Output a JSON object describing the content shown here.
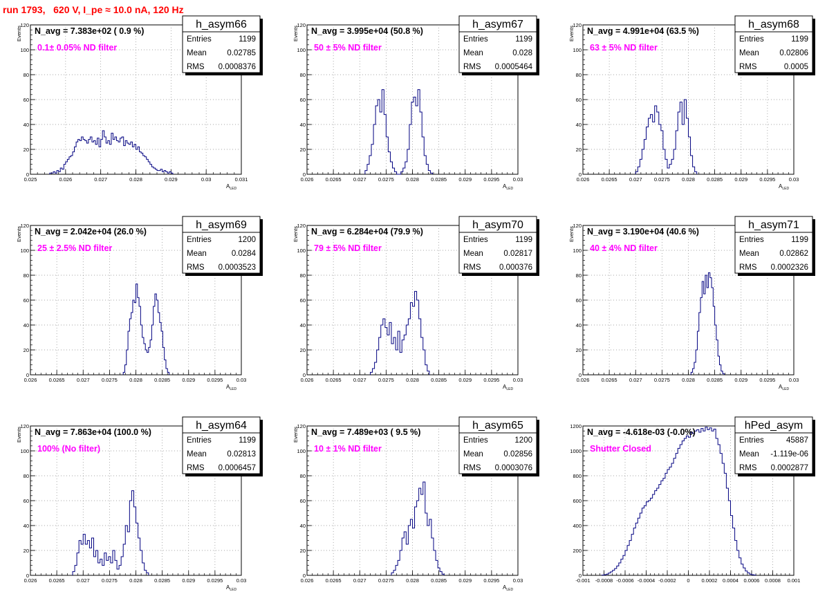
{
  "page_title": "run 1793,   620 V, I_pe ≈ 10.0 nA, 120 Hz",
  "chart_data": [
    {
      "type": "histogram",
      "name": "h_asym66",
      "navg": "N_avg = 7.383e+02 ( 0.9 %)",
      "filter": "0.1± 0.05% ND filter",
      "stats": {
        "entries": "1199",
        "mean": "0.02785",
        "rms": "0.0008376"
      },
      "xlabel": "A",
      "xlabel_sub": "LED",
      "ylabel": "Events",
      "xlim": [
        0.025,
        0.031
      ],
      "ylim": [
        0,
        120
      ],
      "xticks": [
        0.025,
        0.026,
        0.027,
        0.028,
        0.029,
        0.03,
        0.031
      ],
      "xtick_labels": [
        "0.025",
        "0.026",
        "0.027",
        "0.028",
        "0.029",
        "0.03",
        "0.031"
      ],
      "yticks": [
        0,
        20,
        40,
        60,
        80,
        100,
        120
      ],
      "ytick_labels": [
        "0",
        "20",
        "40",
        "60",
        "80",
        "100",
        "120"
      ],
      "bin_start": 0.02555,
      "bin_width": 5e-05,
      "counts": [
        1,
        1,
        2,
        1,
        3,
        2,
        5,
        4,
        8,
        10,
        12,
        14,
        15,
        18,
        22,
        26,
        28,
        27,
        30,
        28,
        27,
        25,
        28,
        30,
        26,
        27,
        24,
        29,
        22,
        28,
        35,
        30,
        25,
        27,
        24,
        33,
        28,
        30,
        27,
        26,
        29,
        30,
        23,
        27,
        25,
        24,
        26,
        22,
        24,
        20,
        22,
        18,
        17,
        15,
        14,
        12,
        10,
        8,
        6,
        5,
        4,
        3,
        3,
        4,
        2,
        3,
        2,
        1,
        2,
        1
      ]
    },
    {
      "type": "histogram",
      "name": "h_asym67",
      "navg": "N_avg = 3.995e+04 (50.8 %)",
      "filter": "50 ± 5% ND filter",
      "stats": {
        "entries": "1199",
        "mean": "0.028",
        "rms": "0.0005464"
      },
      "xlabel": "A",
      "xlabel_sub": "LED",
      "ylabel": "Events",
      "xlim": [
        0.026,
        0.03
      ],
      "ylim": [
        0,
        120
      ],
      "xticks": [
        0.026,
        0.0265,
        0.027,
        0.0275,
        0.028,
        0.0285,
        0.029,
        0.0295,
        0.03
      ],
      "xtick_labels": [
        "0.026",
        "0.0265",
        "0.027",
        "0.0275",
        "0.028",
        "0.0285",
        "0.029",
        "0.0295",
        "0.03"
      ],
      "yticks": [
        0,
        20,
        40,
        60,
        80,
        100,
        120
      ],
      "ytick_labels": [
        "0",
        "20",
        "40",
        "60",
        "80",
        "100",
        "120"
      ],
      "bin_start": 0.0271,
      "bin_width": 4e-05,
      "counts": [
        3,
        8,
        15,
        24,
        40,
        55,
        60,
        50,
        68,
        48,
        30,
        18,
        10,
        5,
        2,
        0,
        0,
        2,
        5,
        10,
        20,
        40,
        58,
        62,
        55,
        68,
        50,
        30,
        15,
        8,
        3,
        1
      ]
    },
    {
      "type": "histogram",
      "name": "h_asym68",
      "navg": "N_avg = 4.991e+04 (63.5 %)",
      "filter": "63 ± 5% ND filter",
      "stats": {
        "entries": "1199",
        "mean": "0.02806",
        "rms": "0.0005"
      },
      "xlabel": "A",
      "xlabel_sub": "LED",
      "ylabel": "Events",
      "xlim": [
        0.026,
        0.03
      ],
      "ylim": [
        0,
        120
      ],
      "xticks": [
        0.026,
        0.0265,
        0.027,
        0.0275,
        0.028,
        0.0285,
        0.029,
        0.0295,
        0.03
      ],
      "xtick_labels": [
        "0.026",
        "0.0265",
        "0.027",
        "0.0275",
        "0.028",
        "0.0285",
        "0.029",
        "0.0295",
        "0.03"
      ],
      "yticks": [
        0,
        20,
        40,
        60,
        80,
        100,
        120
      ],
      "ytick_labels": [
        "0",
        "20",
        "40",
        "60",
        "80",
        "100",
        "120"
      ],
      "bin_start": 0.027,
      "bin_width": 4e-05,
      "counts": [
        2,
        6,
        12,
        20,
        28,
        38,
        45,
        48,
        42,
        55,
        50,
        40,
        35,
        20,
        12,
        5,
        8,
        12,
        20,
        35,
        50,
        58,
        40,
        60,
        45,
        30,
        15,
        6,
        2
      ]
    },
    {
      "type": "histogram",
      "name": "h_asym69",
      "navg": "N_avg = 2.042e+04 (26.0 %)",
      "filter": "25 ± 2.5% ND filter",
      "stats": {
        "entries": "1200",
        "mean": "0.0284",
        "rms": "0.0003523"
      },
      "xlabel": "A",
      "xlabel_sub": "LED",
      "ylabel": "Events",
      "xlim": [
        0.026,
        0.03
      ],
      "ylim": [
        0,
        120
      ],
      "xticks": [
        0.026,
        0.0265,
        0.027,
        0.0275,
        0.028,
        0.0285,
        0.029,
        0.0295,
        0.03
      ],
      "xtick_labels": [
        "0.026",
        "0.0265",
        "0.027",
        "0.0275",
        "0.028",
        "0.0285",
        "0.029",
        "0.0295",
        "0.03"
      ],
      "yticks": [
        0,
        20,
        40,
        60,
        80,
        100,
        120
      ],
      "ytick_labels": [
        "0",
        "20",
        "40",
        "60",
        "80",
        "100",
        "120"
      ],
      "bin_start": 0.02776,
      "bin_width": 3e-05,
      "counts": [
        2,
        8,
        20,
        35,
        45,
        50,
        60,
        58,
        73,
        62,
        55,
        40,
        30,
        25,
        20,
        18,
        22,
        28,
        40,
        55,
        65,
        60,
        50,
        42,
        35,
        22,
        12,
        5,
        2
      ]
    },
    {
      "type": "histogram",
      "name": "h_asym70",
      "navg": "N_avg = 6.284e+04 (79.9 %)",
      "filter": "79 ± 5% ND filter",
      "stats": {
        "entries": "1199",
        "mean": "0.02817",
        "rms": "0.000376"
      },
      "xlabel": "A",
      "xlabel_sub": "LED",
      "ylabel": "Events",
      "xlim": [
        0.026,
        0.03
      ],
      "ylim": [
        0,
        120
      ],
      "xticks": [
        0.026,
        0.0265,
        0.027,
        0.0275,
        0.028,
        0.0285,
        0.029,
        0.0295,
        0.03
      ],
      "xtick_labels": [
        "0.026",
        "0.0265",
        "0.027",
        "0.0275",
        "0.028",
        "0.0285",
        "0.029",
        "0.0295",
        "0.03"
      ],
      "yticks": [
        0,
        20,
        40,
        60,
        80,
        100,
        120
      ],
      "ytick_labels": [
        "0",
        "20",
        "40",
        "60",
        "80",
        "100",
        "120"
      ],
      "bin_start": 0.0272,
      "bin_width": 4e-05,
      "counts": [
        2,
        5,
        10,
        20,
        30,
        40,
        45,
        38,
        32,
        42,
        25,
        30,
        20,
        35,
        18,
        28,
        32,
        40,
        45,
        58,
        55,
        67,
        60,
        45,
        30,
        20,
        8,
        3
      ]
    },
    {
      "type": "histogram",
      "name": "h_asym71",
      "navg": "N_avg = 3.190e+04 (40.6 %)",
      "filter": "40 ± 4% ND filter",
      "stats": {
        "entries": "1199",
        "mean": "0.02862",
        "rms": "0.0002326"
      },
      "xlabel": "A",
      "xlabel_sub": "LED",
      "ylabel": "Events",
      "xlim": [
        0.026,
        0.03
      ],
      "ylim": [
        0,
        120
      ],
      "xticks": [
        0.026,
        0.0265,
        0.027,
        0.0275,
        0.028,
        0.0285,
        0.029,
        0.0295,
        0.03
      ],
      "xtick_labels": [
        "0.026",
        "0.0265",
        "0.027",
        "0.0275",
        "0.028",
        "0.0285",
        "0.029",
        "0.0295",
        "0.03"
      ],
      "yticks": [
        0,
        20,
        40,
        60,
        80,
        100,
        120
      ],
      "ytick_labels": [
        "0",
        "20",
        "40",
        "60",
        "80",
        "100",
        "120"
      ],
      "bin_start": 0.02805,
      "bin_width": 3e-05,
      "counts": [
        2,
        5,
        10,
        20,
        35,
        50,
        62,
        75,
        65,
        80,
        70,
        82,
        78,
        70,
        55,
        40,
        28,
        15,
        8,
        3,
        1
      ]
    },
    {
      "type": "histogram",
      "name": "h_asym64",
      "navg": "N_avg = 7.863e+04 (100.0 %)",
      "filter": "100% (No filter)",
      "stats": {
        "entries": "1199",
        "mean": "0.02813",
        "rms": "0.0006457"
      },
      "xlabel": "A",
      "xlabel_sub": "LED",
      "ylabel": "Events",
      "xlim": [
        0.026,
        0.03
      ],
      "ylim": [
        0,
        120
      ],
      "xticks": [
        0.026,
        0.0265,
        0.027,
        0.0275,
        0.028,
        0.0285,
        0.029,
        0.0295,
        0.03
      ],
      "xtick_labels": [
        "0.026",
        "0.0265",
        "0.027",
        "0.0275",
        "0.028",
        "0.0285",
        "0.029",
        "0.0295",
        "0.03"
      ],
      "yticks": [
        0,
        20,
        40,
        60,
        80,
        100,
        120
      ],
      "ytick_labels": [
        "0",
        "20",
        "40",
        "60",
        "80",
        "100",
        "120"
      ],
      "bin_start": 0.0268,
      "bin_width": 4e-05,
      "counts": [
        3,
        8,
        18,
        28,
        25,
        33,
        25,
        28,
        22,
        30,
        15,
        20,
        10,
        13,
        8,
        18,
        12,
        15,
        10,
        20,
        12,
        5,
        8,
        15,
        25,
        40,
        35,
        60,
        68,
        55,
        42,
        30,
        20,
        10,
        4,
        2
      ]
    },
    {
      "type": "histogram",
      "name": "h_asym65",
      "navg": "N_avg = 7.489e+03 ( 9.5 %)",
      "filter": "10 ± 1% ND filter",
      "stats": {
        "entries": "1200",
        "mean": "0.02856",
        "rms": "0.0003076"
      },
      "xlabel": "A",
      "xlabel_sub": "LED",
      "ylabel": "Events",
      "xlim": [
        0.026,
        0.03
      ],
      "ylim": [
        0,
        120
      ],
      "xticks": [
        0.026,
        0.0265,
        0.027,
        0.0275,
        0.028,
        0.0285,
        0.029,
        0.0295,
        0.03
      ],
      "xtick_labels": [
        "0.026",
        "0.0265",
        "0.027",
        "0.0275",
        "0.028",
        "0.0285",
        "0.029",
        "0.0295",
        "0.03"
      ],
      "yticks": [
        0,
        20,
        40,
        60,
        80,
        100,
        120
      ],
      "ytick_labels": [
        "0",
        "20",
        "40",
        "60",
        "80",
        "100",
        "120"
      ],
      "bin_start": 0.0276,
      "bin_width": 4e-05,
      "counts": [
        2,
        4,
        8,
        12,
        20,
        30,
        35,
        25,
        40,
        45,
        38,
        55,
        60,
        70,
        65,
        75,
        50,
        40,
        45,
        30,
        20,
        12,
        6,
        3,
        1
      ]
    },
    {
      "type": "histogram",
      "name": "hPed_asym",
      "navg": "N_avg = -4.618e-03 (-0.0%)",
      "filter": "Shutter Closed",
      "stats": {
        "entries": "45887",
        "mean": "-1.119e-06",
        "rms": "0.0002877"
      },
      "xlabel": "",
      "xlabel_sub": "",
      "ylabel": "",
      "xlim": [
        -0.001,
        0.001
      ],
      "ylim": [
        0,
        1200
      ],
      "xticks": [
        -0.001,
        -0.0008,
        -0.0006,
        -0.0004,
        -0.0002,
        0,
        0.0002,
        0.0004,
        0.0006,
        0.0008,
        0.001
      ],
      "xtick_labels": [
        "-0.001",
        "-0.0008",
        "-0.0006",
        "-0.0004",
        "-0.0002",
        "0",
        "0.0002",
        "0.0004",
        "0.0006",
        "0.0008",
        "0.001"
      ],
      "yticks": [
        0,
        200,
        400,
        600,
        800,
        1000,
        1200
      ],
      "ytick_labels": [
        "0",
        "200",
        "400",
        "600",
        "800",
        "1000",
        "1200"
      ],
      "bin_start": -0.00082,
      "bin_width": 2e-05,
      "counts": [
        2,
        5,
        10,
        18,
        28,
        40,
        55,
        75,
        100,
        130,
        160,
        200,
        240,
        280,
        330,
        380,
        420,
        460,
        500,
        540,
        560,
        590,
        600,
        620,
        650,
        680,
        700,
        730,
        760,
        780,
        820,
        850,
        870,
        900,
        940,
        980,
        1020,
        1050,
        1080,
        1100,
        1120,
        1110,
        1150,
        1140,
        1160,
        1170,
        1150,
        1180,
        1160,
        1190,
        1170,
        1185,
        1160,
        1175,
        1100,
        1050,
        980,
        900,
        820,
        700,
        600,
        480,
        380,
        280,
        200,
        140,
        90,
        60,
        35,
        20,
        10,
        5,
        2
      ]
    }
  ]
}
